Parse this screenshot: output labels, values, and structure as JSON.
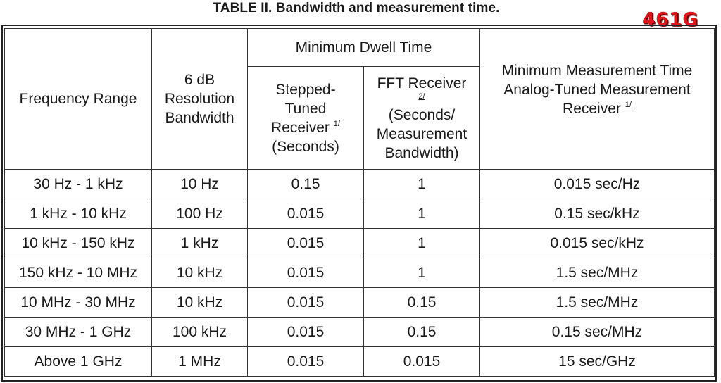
{
  "title": "TABLE II.  Bandwidth and measurement time.",
  "badge": "461G",
  "headers": {
    "frequency_range": "Frequency Range",
    "resolution_bw": [
      "6 dB",
      "Resolution",
      "Bandwidth"
    ],
    "min_dwell_time": "Minimum Dwell Time",
    "stepped": [
      "Stepped-",
      "Tuned",
      "Receiver",
      "(Seconds)"
    ],
    "stepped_fn": "1/",
    "fft": [
      "FFT Receiver",
      "(Seconds/",
      "Measurement",
      "Bandwidth)"
    ],
    "fft_fn": "2/",
    "min_meas_time": [
      "Minimum Measurement Time",
      "Analog-Tuned Measurement",
      "Receiver"
    ],
    "min_meas_fn": "1/"
  },
  "rows": [
    {
      "range": "30 Hz - 1 kHz",
      "bw": "10 Hz",
      "stepped": "0.15",
      "fft": "1",
      "analog": "0.015 sec/Hz"
    },
    {
      "range": "1 kHz - 10 kHz",
      "bw": "100 Hz",
      "stepped": "0.015",
      "fft": "1",
      "analog": "0.15 sec/kHz"
    },
    {
      "range": "10 kHz - 150 kHz",
      "bw": "1 kHz",
      "stepped": "0.015",
      "fft": "1",
      "analog": "0.015 sec/kHz"
    },
    {
      "range": "150 kHz - 10 MHz",
      "bw": "10 kHz",
      "stepped": "0.015",
      "fft": "1",
      "analog": "1.5 sec/MHz"
    },
    {
      "range": "10 MHz - 30 MHz",
      "bw": "10 kHz",
      "stepped": "0.015",
      "fft": "0.15",
      "analog": "1.5 sec/MHz"
    },
    {
      "range": "30 MHz - 1 GHz",
      "bw": "100 kHz",
      "stepped": "0.015",
      "fft": "0.15",
      "analog": "0.15 sec/MHz"
    },
    {
      "range": "Above 1 GHz",
      "bw": "1 MHz",
      "stepped": "0.015",
      "fft": "0.015",
      "analog": "15 sec/GHz"
    }
  ]
}
